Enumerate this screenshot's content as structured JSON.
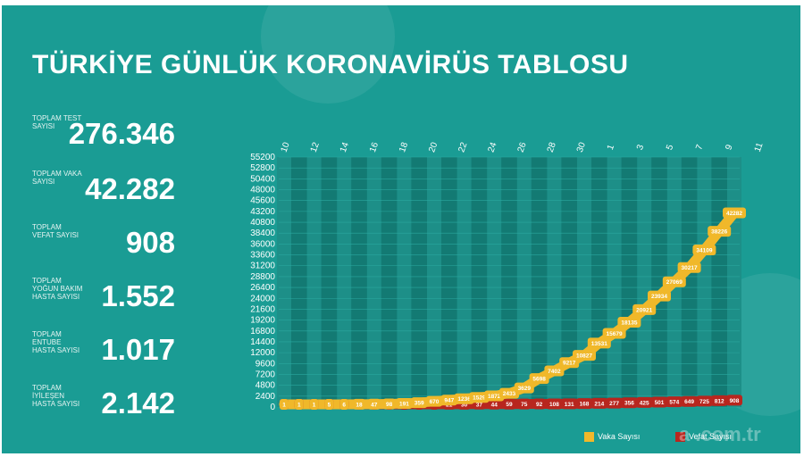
{
  "header": {
    "title": "TÜRKİYE GÜNLÜK KORONAVİRÜS TABLOSU"
  },
  "stats": [
    {
      "label": "TOPLAM TEST SAYISI",
      "value": "276.346"
    },
    {
      "label": "TOPLAM VAKA SAYISI",
      "value": "42.282"
    },
    {
      "label": "TOPLAM VEFAT SAYISI",
      "value": "908"
    },
    {
      "label": "TOPLAM YOĞUN BAKIM HASTA SAYISI",
      "value": "1.552"
    },
    {
      "label": "TOPLAM ENTUBE HASTA SAYISI",
      "value": "1.017"
    },
    {
      "label": "TOPLAM İYİLEŞEN HASTA SAYISI",
      "value": "2.142"
    }
  ],
  "legend": {
    "cases": "Vaka Sayısı",
    "deaths": "Vefat Sayısı"
  },
  "watermark": "a .com.tr",
  "colors": {
    "background": "#1a9c94",
    "cases": "#f0b82a",
    "deaths": "#b8261e",
    "grid_dark": "#137a73"
  },
  "chart_data": {
    "type": "line",
    "x_tick_labels": [
      "10",
      "12",
      "14",
      "16",
      "18",
      "20",
      "22",
      "24",
      "26",
      "28",
      "30",
      "1",
      "3",
      "5",
      "7",
      "9",
      "11"
    ],
    "y_tick_labels": [
      "55200",
      "52800",
      "50400",
      "48000",
      "45600",
      "43200",
      "40800",
      "38400",
      "36000",
      "33600",
      "31200",
      "28800",
      "26400",
      "24000",
      "21600",
      "19200",
      "16800",
      "14400",
      "12000",
      "9600",
      "7200",
      "4800",
      "2400",
      "0"
    ],
    "ylim": [
      0,
      55200
    ],
    "grid": true,
    "legend_position": "bottom-right",
    "series": [
      {
        "name": "Vaka Sayısı",
        "values": [
          1,
          1,
          1,
          5,
          6,
          18,
          47,
          98,
          191,
          359,
          670,
          947,
          1236,
          1529,
          1872,
          2433,
          3629,
          5698,
          7402,
          9217,
          10827,
          13531,
          15679,
          18135,
          20921,
          23934,
          27069,
          30217,
          34109,
          38226,
          42282
        ]
      },
      {
        "name": "Vefat Sayısı",
        "values": [
          0,
          0,
          0,
          0,
          0,
          0,
          1,
          1,
          2,
          4,
          9,
          21,
          30,
          37,
          44,
          59,
          75,
          92,
          108,
          131,
          168,
          214,
          277,
          356,
          425,
          501,
          574,
          649,
          725,
          812,
          908
        ]
      }
    ]
  }
}
